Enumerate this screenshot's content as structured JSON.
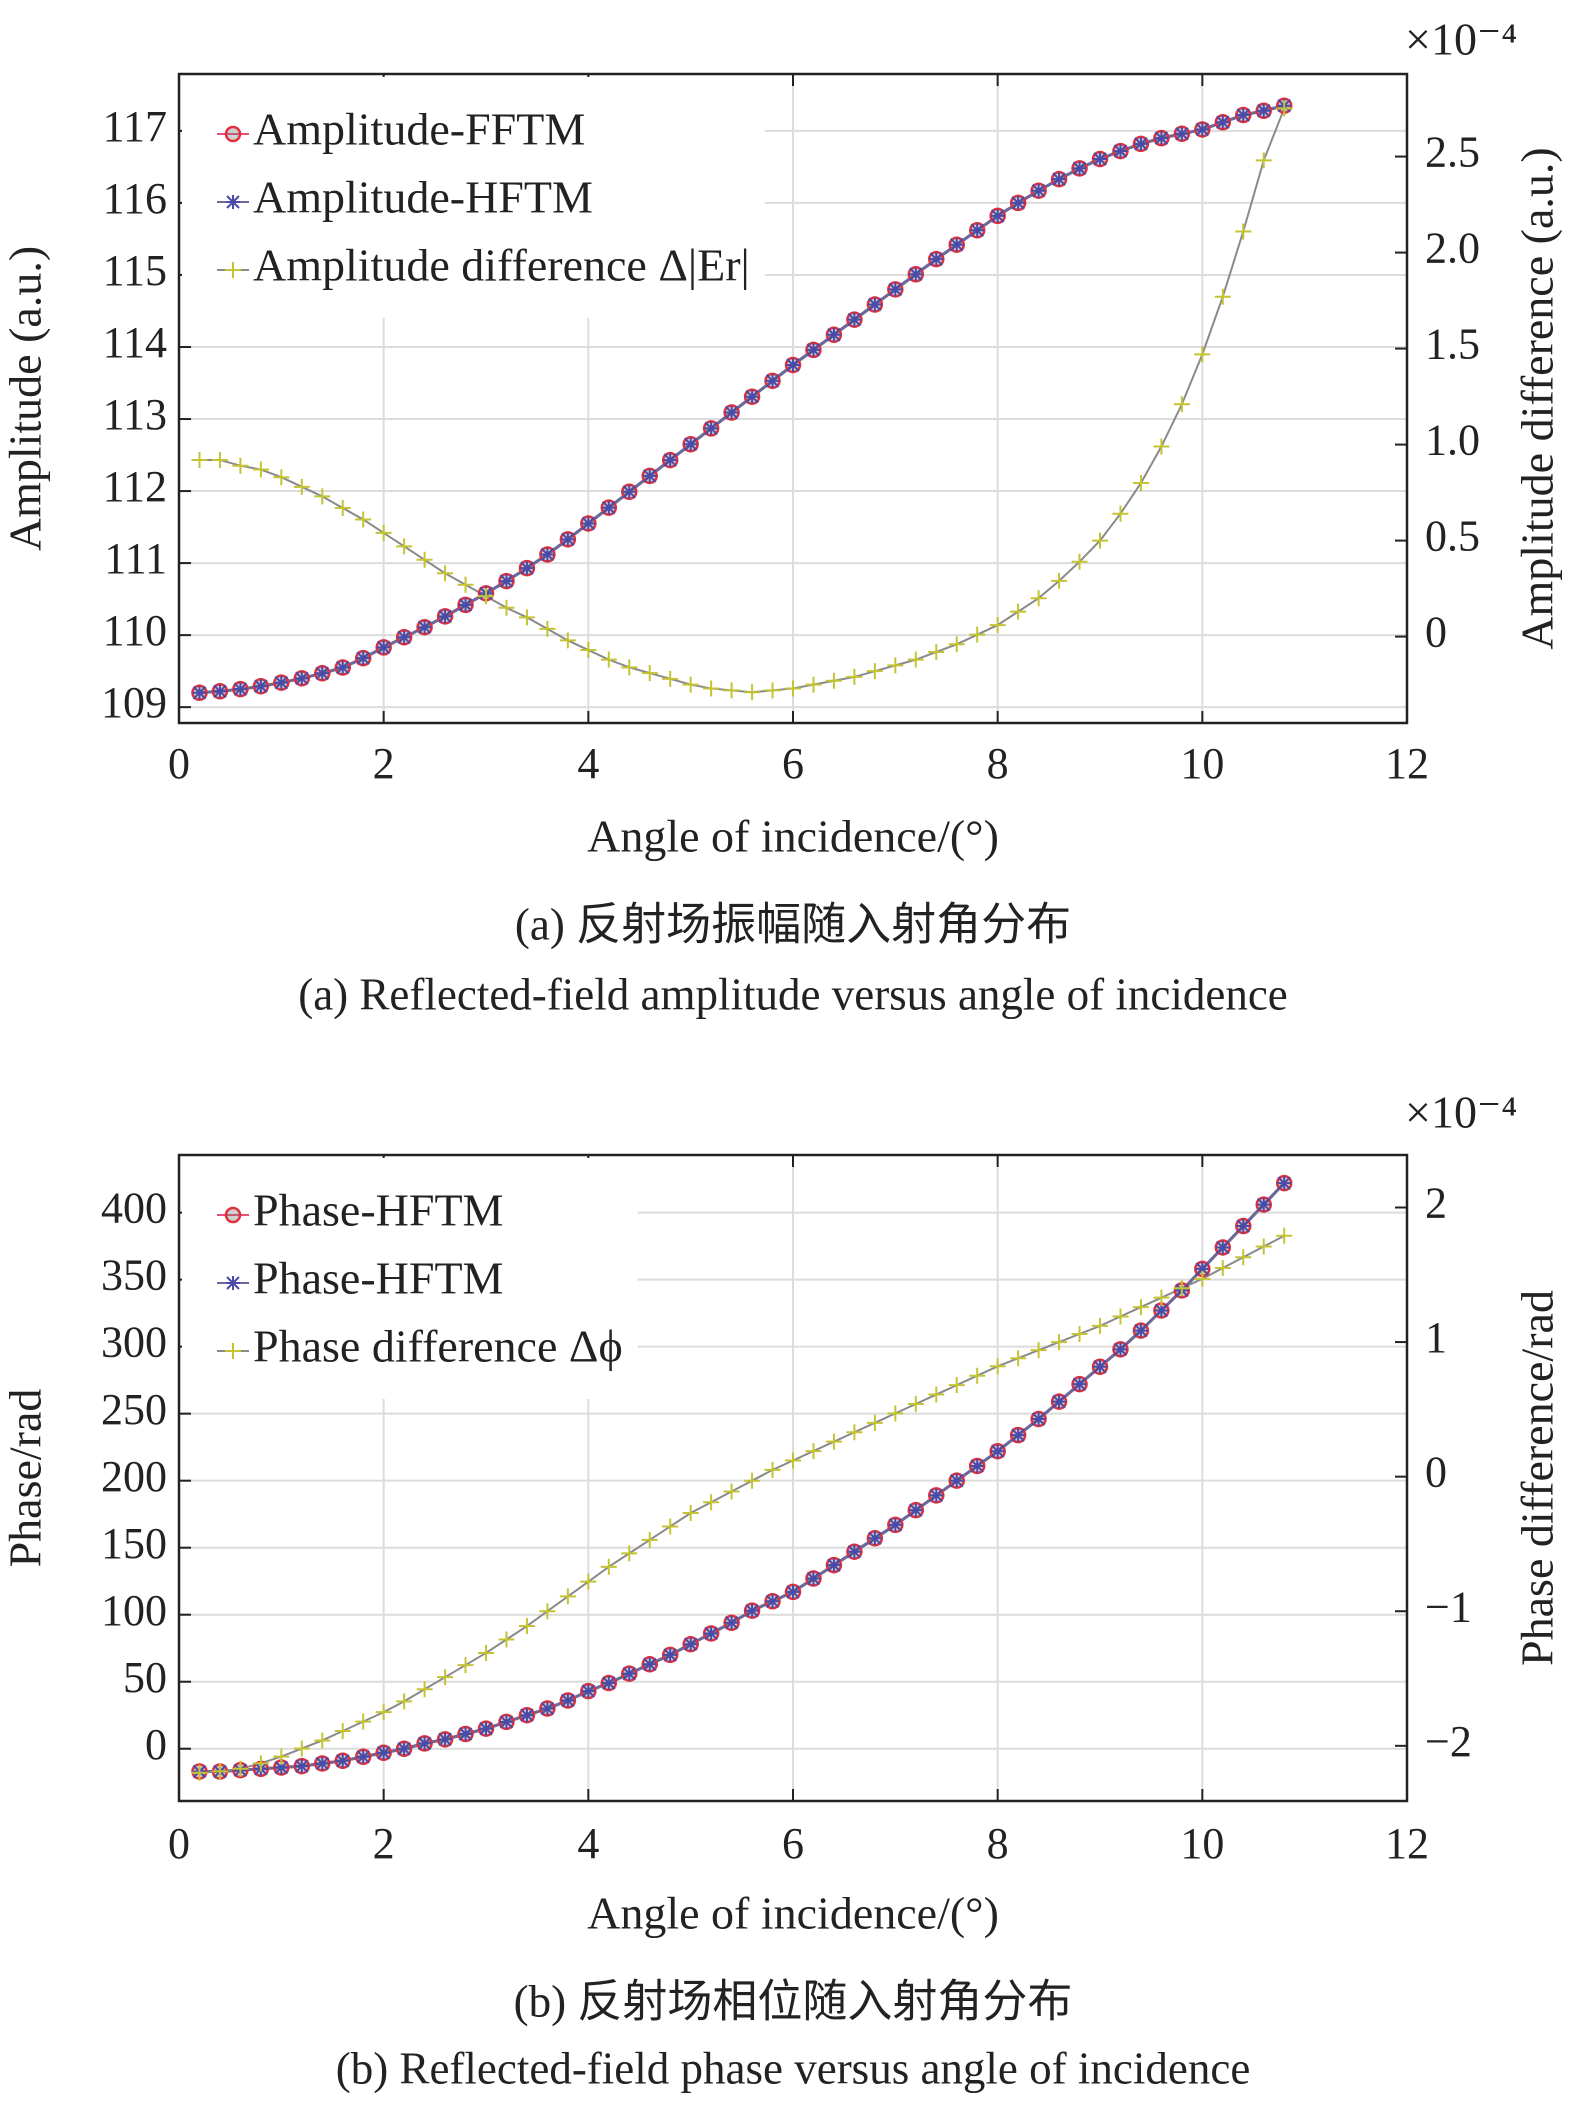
{
  "chart_data": [
    {
      "type": "line",
      "title": "(a) 反射场振幅随入射角分布",
      "subtitle": "(a) Reflected-field amplitude versus angle of incidence",
      "xlabel": "Angle of incidence/(°)",
      "ylabel": "Amplitude (a.u.)",
      "y2label": "Amplitude difference (a.u.)",
      "y2_multiplier": "×10⁻⁴",
      "xlim": [
        0,
        12
      ],
      "xticks": [
        0,
        2,
        4,
        6,
        8,
        10,
        12
      ],
      "ylim": [
        108.78,
        117.79
      ],
      "yticks": [
        109,
        110,
        111,
        112,
        113,
        114,
        115,
        116,
        117
      ],
      "y2lim": [
        -0.45,
        2.93
      ],
      "y2ticks": [
        0,
        0.5,
        {
          "value": 1,
          "label": "1.0"
        },
        1.5,
        {
          "value": 2,
          "label": "2.0"
        },
        2.5
      ],
      "grid": true,
      "legend": "upper left",
      "x": [
        0.2,
        0.4,
        0.6,
        0.8,
        1.0,
        1.2,
        1.4,
        1.6,
        1.8,
        2.0,
        2.2,
        2.4,
        2.6,
        2.8,
        3.0,
        3.2,
        3.4,
        3.6,
        3.8,
        4.0,
        4.2,
        4.4,
        4.6,
        4.8,
        5.0,
        5.2,
        5.4,
        5.6,
        5.8,
        6.0,
        6.2,
        6.4,
        6.6,
        6.8,
        7.0,
        7.2,
        7.4,
        7.6,
        7.8,
        8.0,
        8.2,
        8.4,
        8.6,
        8.8,
        9.0,
        9.2,
        9.4,
        9.6,
        9.8,
        10.0,
        10.2,
        10.4,
        10.6,
        10.8
      ],
      "series": [
        {
          "name": "Amplitude-FFTM",
          "color": "#e0303c",
          "line_color": "#e8507a",
          "marker": "circle",
          "values": [
            109.2,
            109.22,
            109.25,
            109.29,
            109.34,
            109.4,
            109.47,
            109.55,
            109.68,
            109.83,
            109.97,
            110.11,
            110.26,
            110.42,
            110.58,
            110.75,
            110.93,
            111.12,
            111.33,
            111.55,
            111.77,
            111.99,
            112.21,
            112.43,
            112.65,
            112.87,
            113.09,
            113.31,
            113.53,
            113.75,
            113.96,
            114.17,
            114.38,
            114.59,
            114.8,
            115.01,
            115.22,
            115.42,
            115.62,
            115.82,
            116.0,
            116.17,
            116.33,
            116.48,
            116.61,
            116.72,
            116.82,
            116.9,
            116.96,
            117.02,
            117.12,
            117.22,
            117.28,
            117.35
          ]
        },
        {
          "name": "Amplitude-HFTM",
          "color": "#4a4aa8",
          "line_color": "#6a6a9a",
          "marker": "star",
          "values": [
            109.2,
            109.22,
            109.25,
            109.29,
            109.34,
            109.4,
            109.47,
            109.55,
            109.68,
            109.83,
            109.97,
            110.11,
            110.26,
            110.42,
            110.58,
            110.75,
            110.93,
            111.12,
            111.33,
            111.55,
            111.77,
            111.99,
            112.21,
            112.43,
            112.65,
            112.87,
            113.09,
            113.31,
            113.53,
            113.75,
            113.96,
            114.17,
            114.38,
            114.59,
            114.8,
            115.01,
            115.22,
            115.42,
            115.62,
            115.82,
            116.0,
            116.17,
            116.33,
            116.48,
            116.61,
            116.72,
            116.82,
            116.9,
            116.96,
            117.02,
            117.12,
            117.22,
            117.28,
            117.35
          ]
        },
        {
          "name": "Amplitude difference Δ|Er|",
          "color": "#c4c432",
          "line_color": "#8a8a8a",
          "marker": "plus",
          "axis": "y2",
          "values": [
            0.92,
            0.92,
            0.89,
            0.87,
            0.83,
            0.78,
            0.73,
            0.67,
            0.61,
            0.54,
            0.47,
            0.4,
            0.33,
            0.27,
            0.21,
            0.15,
            0.1,
            0.04,
            -0.02,
            -0.07,
            -0.12,
            -0.16,
            -0.19,
            -0.22,
            -0.25,
            -0.27,
            -0.28,
            -0.29,
            -0.28,
            -0.27,
            -0.25,
            -0.23,
            -0.21,
            -0.18,
            -0.15,
            -0.12,
            -0.08,
            -0.04,
            0.01,
            0.06,
            0.13,
            0.2,
            0.29,
            0.39,
            0.5,
            0.64,
            0.8,
            0.99,
            1.21,
            1.47,
            1.77,
            2.11,
            2.48,
            2.75
          ]
        }
      ]
    },
    {
      "type": "line",
      "title": "(b) 反射场相位随入射角分布",
      "subtitle": "(b) Reflected-field phase versus angle of incidence",
      "xlabel": "Angle of incidence/(°)",
      "ylabel": "Phase/rad",
      "y2label": "Phase difference/rad",
      "y2_multiplier": "×10⁻⁴",
      "xlim": [
        0,
        12
      ],
      "xticks": [
        0,
        2,
        4,
        6,
        8,
        10,
        12
      ],
      "ylim": [
        -39,
        443
      ],
      "yticks": [
        0,
        50,
        100,
        150,
        200,
        250,
        300,
        350,
        400
      ],
      "y2lim": [
        -2.41,
        2.39
      ],
      "y2ticks": [
        {
          "value": -2,
          "label": "−2"
        },
        {
          "value": -1,
          "label": "−1"
        },
        0,
        1,
        2
      ],
      "grid": true,
      "legend": "upper left",
      "x": [
        0.2,
        0.4,
        0.6,
        0.8,
        1.0,
        1.2,
        1.4,
        1.6,
        1.8,
        2.0,
        2.2,
        2.4,
        2.6,
        2.8,
        3.0,
        3.2,
        3.4,
        3.6,
        3.8,
        4.0,
        4.2,
        4.4,
        4.6,
        4.8,
        5.0,
        5.2,
        5.4,
        5.6,
        5.8,
        6.0,
        6.2,
        6.4,
        6.6,
        6.8,
        7.0,
        7.2,
        7.4,
        7.6,
        7.8,
        8.0,
        8.2,
        8.4,
        8.6,
        8.8,
        9.0,
        9.2,
        9.4,
        9.6,
        9.8,
        10.0,
        10.2,
        10.4,
        10.6,
        10.8
      ],
      "series": [
        {
          "name": "Phase-HFTM",
          "color": "#e0303c",
          "line_color": "#e8507a",
          "marker": "circle",
          "values": [
            -17,
            -17,
            -16,
            -15,
            -14,
            -13,
            -11,
            -9,
            -6,
            -3,
            0,
            4,
            7,
            11,
            15,
            20,
            25,
            30,
            36,
            43,
            49,
            56,
            63,
            70,
            78,
            86,
            94,
            103,
            110,
            117,
            127,
            137,
            147,
            157,
            167,
            178,
            189,
            200,
            211,
            222,
            234,
            246,
            259,
            272,
            285,
            298,
            312,
            327,
            342,
            358,
            374,
            390,
            406,
            422
          ]
        },
        {
          "name": "Phase-HFTM",
          "color": "#4a4aa8",
          "line_color": "#6a6a9a",
          "marker": "star",
          "values": [
            -17,
            -17,
            -16,
            -15,
            -14,
            -13,
            -11,
            -9,
            -6,
            -3,
            0,
            4,
            7,
            11,
            15,
            20,
            25,
            30,
            36,
            43,
            49,
            56,
            63,
            70,
            78,
            86,
            94,
            103,
            110,
            117,
            127,
            137,
            147,
            157,
            167,
            178,
            189,
            200,
            211,
            222,
            234,
            246,
            259,
            272,
            285,
            298,
            312,
            327,
            342,
            358,
            374,
            390,
            406,
            422
          ]
        },
        {
          "name": "Phase difference Δϕ",
          "color": "#c4c432",
          "line_color": "#8a8a8a",
          "marker": "plus",
          "axis": "y2",
          "values": [
            -2.2,
            -2.19,
            -2.17,
            -2.13,
            -2.08,
            -2.02,
            -1.96,
            -1.89,
            -1.82,
            -1.75,
            -1.67,
            -1.58,
            -1.49,
            -1.4,
            -1.31,
            -1.21,
            -1.11,
            -1.0,
            -0.89,
            -0.78,
            -0.67,
            -0.57,
            -0.47,
            -0.37,
            -0.27,
            -0.19,
            -0.11,
            -0.03,
            0.05,
            0.12,
            0.19,
            0.26,
            0.33,
            0.4,
            0.47,
            0.54,
            0.61,
            0.68,
            0.75,
            0.82,
            0.88,
            0.94,
            1.0,
            1.06,
            1.12,
            1.19,
            1.26,
            1.33,
            1.4,
            1.47,
            1.55,
            1.63,
            1.71,
            1.79
          ]
        }
      ]
    }
  ]
}
